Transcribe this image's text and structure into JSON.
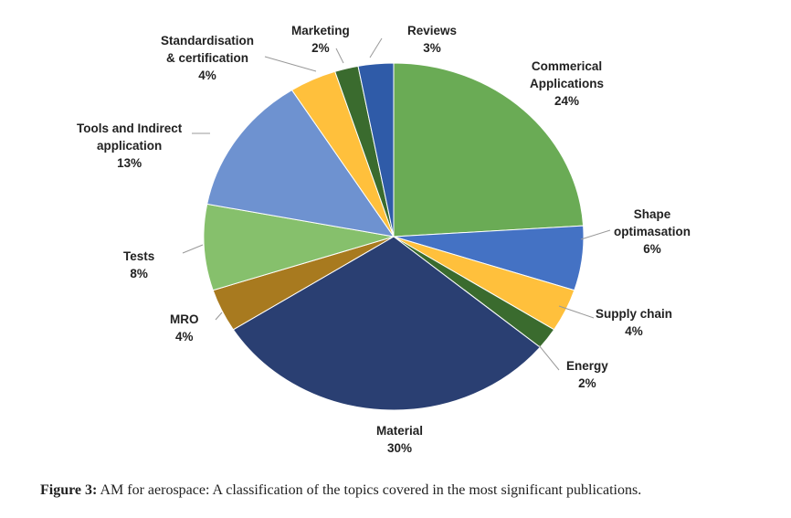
{
  "chart_data": {
    "type": "pie",
    "title": "",
    "slices": [
      {
        "label": "Commerical Applications",
        "value": 24,
        "pct": "24%",
        "color": "#6AAB55"
      },
      {
        "label": "Shape optimasation",
        "value": 6,
        "pct": "6%",
        "color": "#4472C4"
      },
      {
        "label": "Supply chain",
        "value": 4,
        "pct": "4%",
        "color": "#FFC03C"
      },
      {
        "label": "Energy",
        "value": 2,
        "pct": "2%",
        "color": "#3A6B2E"
      },
      {
        "label": "Material",
        "value": 30,
        "pct": "30%",
        "color": "#2A3F72"
      },
      {
        "label": "MRO",
        "value": 4,
        "pct": "4%",
        "color": "#A87A1F"
      },
      {
        "label": "Tests",
        "value": 8,
        "pct": "8%",
        "color": "#86C06C"
      },
      {
        "label": "Tools and Indirect application",
        "value": 13,
        "pct": "13%",
        "color": "#6E92D0"
      },
      {
        "label": "Standardisation & certification",
        "value": 4,
        "pct": "4%",
        "color": "#FFC03C"
      },
      {
        "label": "Marketing",
        "value": 2,
        "pct": "2%",
        "color": "#3A6B2E"
      },
      {
        "label": "Reviews",
        "value": 3,
        "pct": "3%",
        "color": "#2F5BA8"
      }
    ]
  },
  "labels": {
    "commercial": [
      "Commerical",
      "Applications"
    ],
    "shape": [
      "Shape",
      "optimasation"
    ],
    "supply": "Supply chain",
    "energy": "Energy",
    "material": "Material",
    "mro": "MRO",
    "tests": "Tests",
    "tools": [
      "Tools and Indirect",
      "application"
    ],
    "standard": [
      "Standardisation",
      "& certification"
    ],
    "marketing": "Marketing",
    "reviews": "Reviews"
  },
  "caption": {
    "prefix": "Figure 3:",
    "text": " AM for aerospace: A classification of the topics covered in the most significant publications."
  }
}
